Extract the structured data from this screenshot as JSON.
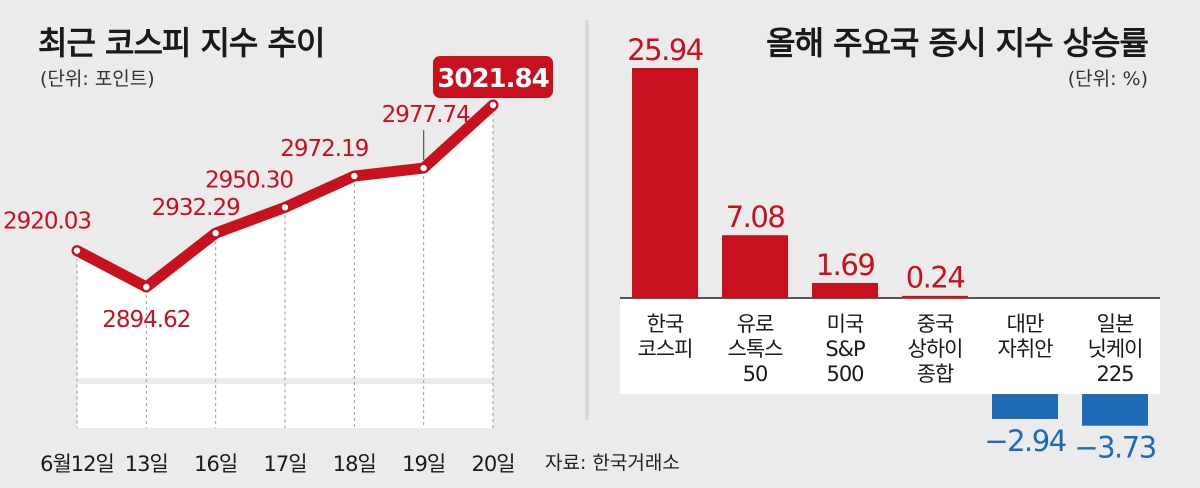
{
  "line_chart": {
    "title": "최근 코스피 지수 추이",
    "unit": "(단위: 포인트)",
    "source": "자료: 한국거래소"
  },
  "bar_chart": {
    "title": "올해 주요국 증시 지수 상승률",
    "unit": "(단위: %)"
  },
  "colors": {
    "red": "#c8101e",
    "blue": "#1f6ab4",
    "plot_bg": "#ffffff",
    "page_bg": "#ebebeb"
  },
  "chart_data": [
    {
      "type": "line",
      "title": "최근 코스피 지수 추이",
      "unit": "포인트",
      "categories": [
        "6월12일",
        "13일",
        "16일",
        "17일",
        "18일",
        "19일",
        "20일"
      ],
      "values": [
        2920.03,
        2894.62,
        2932.29,
        2950.3,
        2972.19,
        2977.74,
        3021.84
      ],
      "labels": [
        "2920.03",
        "2894.62",
        "2932.29",
        "2950.30",
        "2972.19",
        "2977.74",
        "3021.84"
      ],
      "ylim": [
        2880,
        3030
      ],
      "axis_break": true,
      "highlight_last": true
    },
    {
      "type": "bar",
      "title": "올해 주요국 증시 지수 상승률",
      "unit": "%",
      "categories": [
        [
          "한국",
          "코스피"
        ],
        [
          "유로",
          "스톡스",
          "50"
        ],
        [
          "미국",
          "S&P",
          "500"
        ],
        [
          "중국",
          "상하이",
          "종합"
        ],
        [
          "대만",
          "자취안"
        ],
        [
          "일본",
          "닛케이",
          "225"
        ]
      ],
      "values": [
        25.94,
        7.08,
        1.69,
        0.24,
        -2.94,
        -3.73
      ],
      "labels": [
        "25.94",
        "7.08",
        "1.69",
        "0.24",
        "−2.94",
        "−3.73"
      ],
      "ylim": [
        -4,
        27
      ]
    }
  ]
}
